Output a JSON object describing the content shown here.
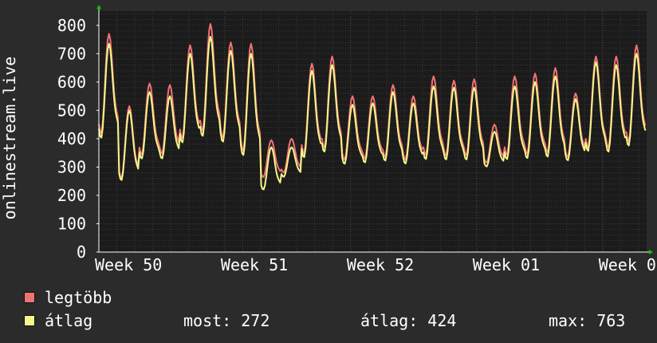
{
  "chart_data": {
    "type": "line",
    "ylabel": "onlinestream.live",
    "ylim": [
      0,
      850
    ],
    "yticks": [
      0,
      100,
      200,
      300,
      400,
      500,
      600,
      700,
      800
    ],
    "xticks": [
      "Week 50",
      "Week 51",
      "Week 52",
      "Week 01",
      "Week 0"
    ],
    "grid": true,
    "colors": {
      "background": "#2b2b2b",
      "plot": "#1b1b1b",
      "grid": "#3a3a3a",
      "major_grid": "#6a3a3a",
      "axis": "#ffffff",
      "arrow": "#00cc00"
    },
    "series": [
      {
        "name": "legtöbb",
        "color": "#f07373",
        "daily_peaks": [
          770,
          515,
          595,
          590,
          730,
          805,
          740,
          735,
          395,
          400,
          665,
          690,
          550,
          550,
          590,
          550,
          620,
          605,
          610,
          450,
          620,
          630,
          650,
          560,
          690,
          690,
          730
        ],
        "daily_troughs": [
          300,
          175,
          260,
          265,
          290,
          300,
          290,
          230,
          220,
          240,
          240,
          260,
          250,
          255,
          250,
          250,
          250,
          250,
          250,
          270,
          250,
          250,
          250,
          260,
          260,
          260,
          275
        ]
      },
      {
        "name": "átlag",
        "color": "#f5f58a",
        "daily_peaks": [
          735,
          500,
          565,
          550,
          700,
          760,
          710,
          700,
          370,
          370,
          640,
          660,
          520,
          525,
          565,
          525,
          585,
          580,
          580,
          425,
          585,
          600,
          620,
          540,
          670,
          660,
          700
        ],
        "daily_troughs": [
          290,
          170,
          250,
          255,
          280,
          290,
          280,
          220,
          170,
          230,
          230,
          250,
          240,
          245,
          240,
          240,
          240,
          240,
          240,
          260,
          240,
          240,
          240,
          250,
          250,
          250,
          265
        ]
      }
    ]
  },
  "legend": [
    {
      "label": "legtöbb",
      "color": "#f07373"
    },
    {
      "label": "átlag",
      "color": "#f5f58a"
    }
  ],
  "stats": {
    "now": "most: 272",
    "avg": "átlag: 424",
    "max": "max: 763"
  }
}
